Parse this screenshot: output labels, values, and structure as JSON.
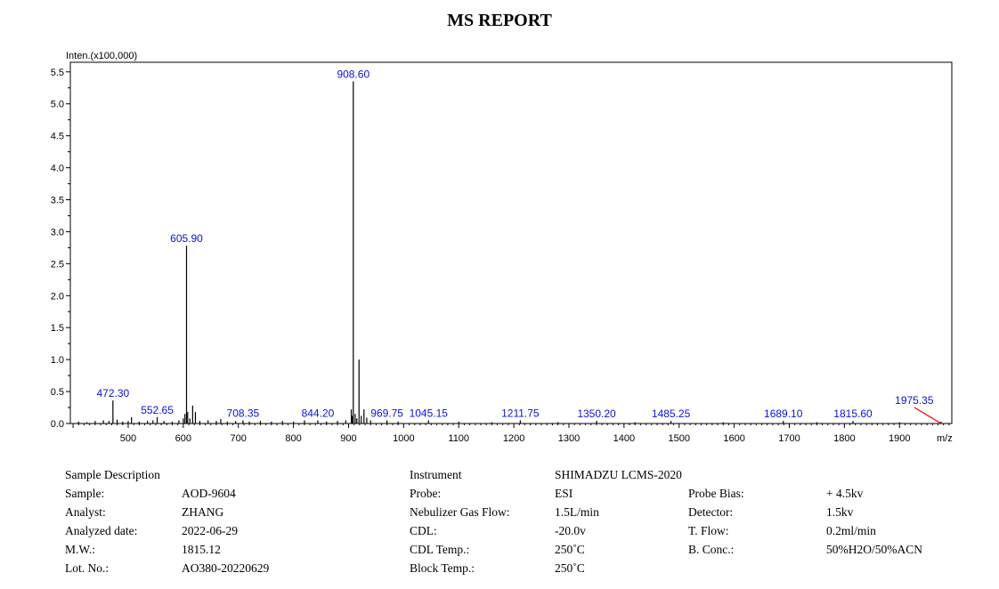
{
  "report": {
    "title": "MS REPORT"
  },
  "chart_data": {
    "type": "bar",
    "ylabel": "Inten.(x100,000)",
    "xlabel": "m/z",
    "xlim": [
      395,
      1995
    ],
    "ylim": [
      0,
      5.65
    ],
    "x_ticks": [
      500,
      600,
      700,
      800,
      900,
      1000,
      1100,
      1200,
      1300,
      1400,
      1500,
      1600,
      1700,
      1800,
      1900
    ],
    "y_ticks": [
      "0.0",
      "0.5",
      "1.0",
      "1.5",
      "2.0",
      "2.5",
      "3.0",
      "3.5",
      "4.0",
      "4.5",
      "5.0",
      "5.5"
    ],
    "peaks": [
      {
        "mz": 410,
        "inten": 0.03
      },
      {
        "mz": 425,
        "inten": 0.02
      },
      {
        "mz": 440,
        "inten": 0.04
      },
      {
        "mz": 455,
        "inten": 0.05
      },
      {
        "mz": 465,
        "inten": 0.04
      },
      {
        "mz": 472.3,
        "inten": 0.36,
        "label": "472.30"
      },
      {
        "mz": 480,
        "inten": 0.06
      },
      {
        "mz": 490,
        "inten": 0.03
      },
      {
        "mz": 500,
        "inten": 0.04
      },
      {
        "mz": 506,
        "inten": 0.1
      },
      {
        "mz": 520,
        "inten": 0.03
      },
      {
        "mz": 535,
        "inten": 0.04
      },
      {
        "mz": 545,
        "inten": 0.05
      },
      {
        "mz": 552.65,
        "inten": 0.1,
        "label": "552.65"
      },
      {
        "mz": 565,
        "inten": 0.04
      },
      {
        "mz": 580,
        "inten": 0.03
      },
      {
        "mz": 592,
        "inten": 0.05
      },
      {
        "mz": 600,
        "inten": 0.08
      },
      {
        "mz": 603,
        "inten": 0.15
      },
      {
        "mz": 605.9,
        "inten": 2.78,
        "label": "605.90"
      },
      {
        "mz": 608,
        "inten": 0.18
      },
      {
        "mz": 612,
        "inten": 0.08
      },
      {
        "mz": 617,
        "inten": 0.28
      },
      {
        "mz": 622,
        "inten": 0.18
      },
      {
        "mz": 630,
        "inten": 0.04
      },
      {
        "mz": 645,
        "inten": 0.05
      },
      {
        "mz": 660,
        "inten": 0.04
      },
      {
        "mz": 668,
        "inten": 0.07
      },
      {
        "mz": 680,
        "inten": 0.03
      },
      {
        "mz": 695,
        "inten": 0.04
      },
      {
        "mz": 708.35,
        "inten": 0.05,
        "label": "708.35"
      },
      {
        "mz": 720,
        "inten": 0.03
      },
      {
        "mz": 740,
        "inten": 0.04
      },
      {
        "mz": 760,
        "inten": 0.03
      },
      {
        "mz": 780,
        "inten": 0.04
      },
      {
        "mz": 800,
        "inten": 0.03
      },
      {
        "mz": 820,
        "inten": 0.05
      },
      {
        "mz": 844.2,
        "inten": 0.05,
        "label": "844.20"
      },
      {
        "mz": 860,
        "inten": 0.03
      },
      {
        "mz": 880,
        "inten": 0.04
      },
      {
        "mz": 895,
        "inten": 0.05
      },
      {
        "mz": 905,
        "inten": 0.22
      },
      {
        "mz": 906.5,
        "inten": 0.12
      },
      {
        "mz": 908.6,
        "inten": 5.35,
        "label": "908.60"
      },
      {
        "mz": 912,
        "inten": 0.15
      },
      {
        "mz": 915,
        "inten": 0.08
      },
      {
        "mz": 919,
        "inten": 1.0
      },
      {
        "mz": 923,
        "inten": 0.12
      },
      {
        "mz": 928,
        "inten": 0.22
      },
      {
        "mz": 933,
        "inten": 0.09
      },
      {
        "mz": 940,
        "inten": 0.05
      },
      {
        "mz": 969.75,
        "inten": 0.05,
        "label": "969.75"
      },
      {
        "mz": 990,
        "inten": 0.03
      },
      {
        "mz": 1045.15,
        "inten": 0.05,
        "label": "1045.15"
      },
      {
        "mz": 1100,
        "inten": 0.03
      },
      {
        "mz": 1160,
        "inten": 0.02
      },
      {
        "mz": 1211.75,
        "inten": 0.05,
        "label": "1211.75"
      },
      {
        "mz": 1280,
        "inten": 0.02
      },
      {
        "mz": 1350.2,
        "inten": 0.04,
        "label": "1350.20"
      },
      {
        "mz": 1420,
        "inten": 0.02
      },
      {
        "mz": 1485.25,
        "inten": 0.04,
        "label": "1485.25"
      },
      {
        "mz": 1580,
        "inten": 0.02
      },
      {
        "mz": 1689.1,
        "inten": 0.04,
        "label": "1689.10"
      },
      {
        "mz": 1750,
        "inten": 0.02
      },
      {
        "mz": 1815.6,
        "inten": 0.04,
        "label": "1815.60"
      },
      {
        "mz": 1900,
        "inten": 0.02
      },
      {
        "mz": 1975.35,
        "inten": 0.03,
        "label": "1975.35"
      }
    ],
    "line_color": "#000000",
    "label_color": "#0a14d0",
    "marker_color": "#e00000"
  },
  "info": {
    "col1": {
      "heading": "Sample Description",
      "rows": [
        {
          "label": "Sample:",
          "value": "AOD-9604"
        },
        {
          "label": "Analyst:",
          "value": "ZHANG"
        },
        {
          "label": "Analyzed date:",
          "value": "2022-06-29"
        },
        {
          "label": "M.W.:",
          "value": "1815.12"
        },
        {
          "label": "Lot. No.:",
          "value": "AO380-20220629"
        }
      ]
    },
    "col2": {
      "heading_label": "Instrument",
      "heading_value": "SHIMADZU LCMS-2020",
      "rows": [
        {
          "label": "Probe:",
          "value": "ESI"
        },
        {
          "label": "Nebulizer Gas Flow:",
          "value": "1.5L/min"
        },
        {
          "label": "CDL:",
          "value": "-20.0v"
        },
        {
          "label": "CDL Temp.:",
          "value": "250˚C"
        },
        {
          "label": "Block Temp.:",
          "value": "250˚C"
        }
      ]
    },
    "col3": {
      "rows": [
        {
          "label": "Probe Bias:",
          "value": "+ 4.5kv"
        },
        {
          "label": "Detector:",
          "value": "1.5kv"
        },
        {
          "label": "T. Flow:",
          "value": "0.2ml/min"
        },
        {
          "label": "B. Conc.:",
          "value": "50%H2O/50%ACN"
        }
      ]
    }
  }
}
